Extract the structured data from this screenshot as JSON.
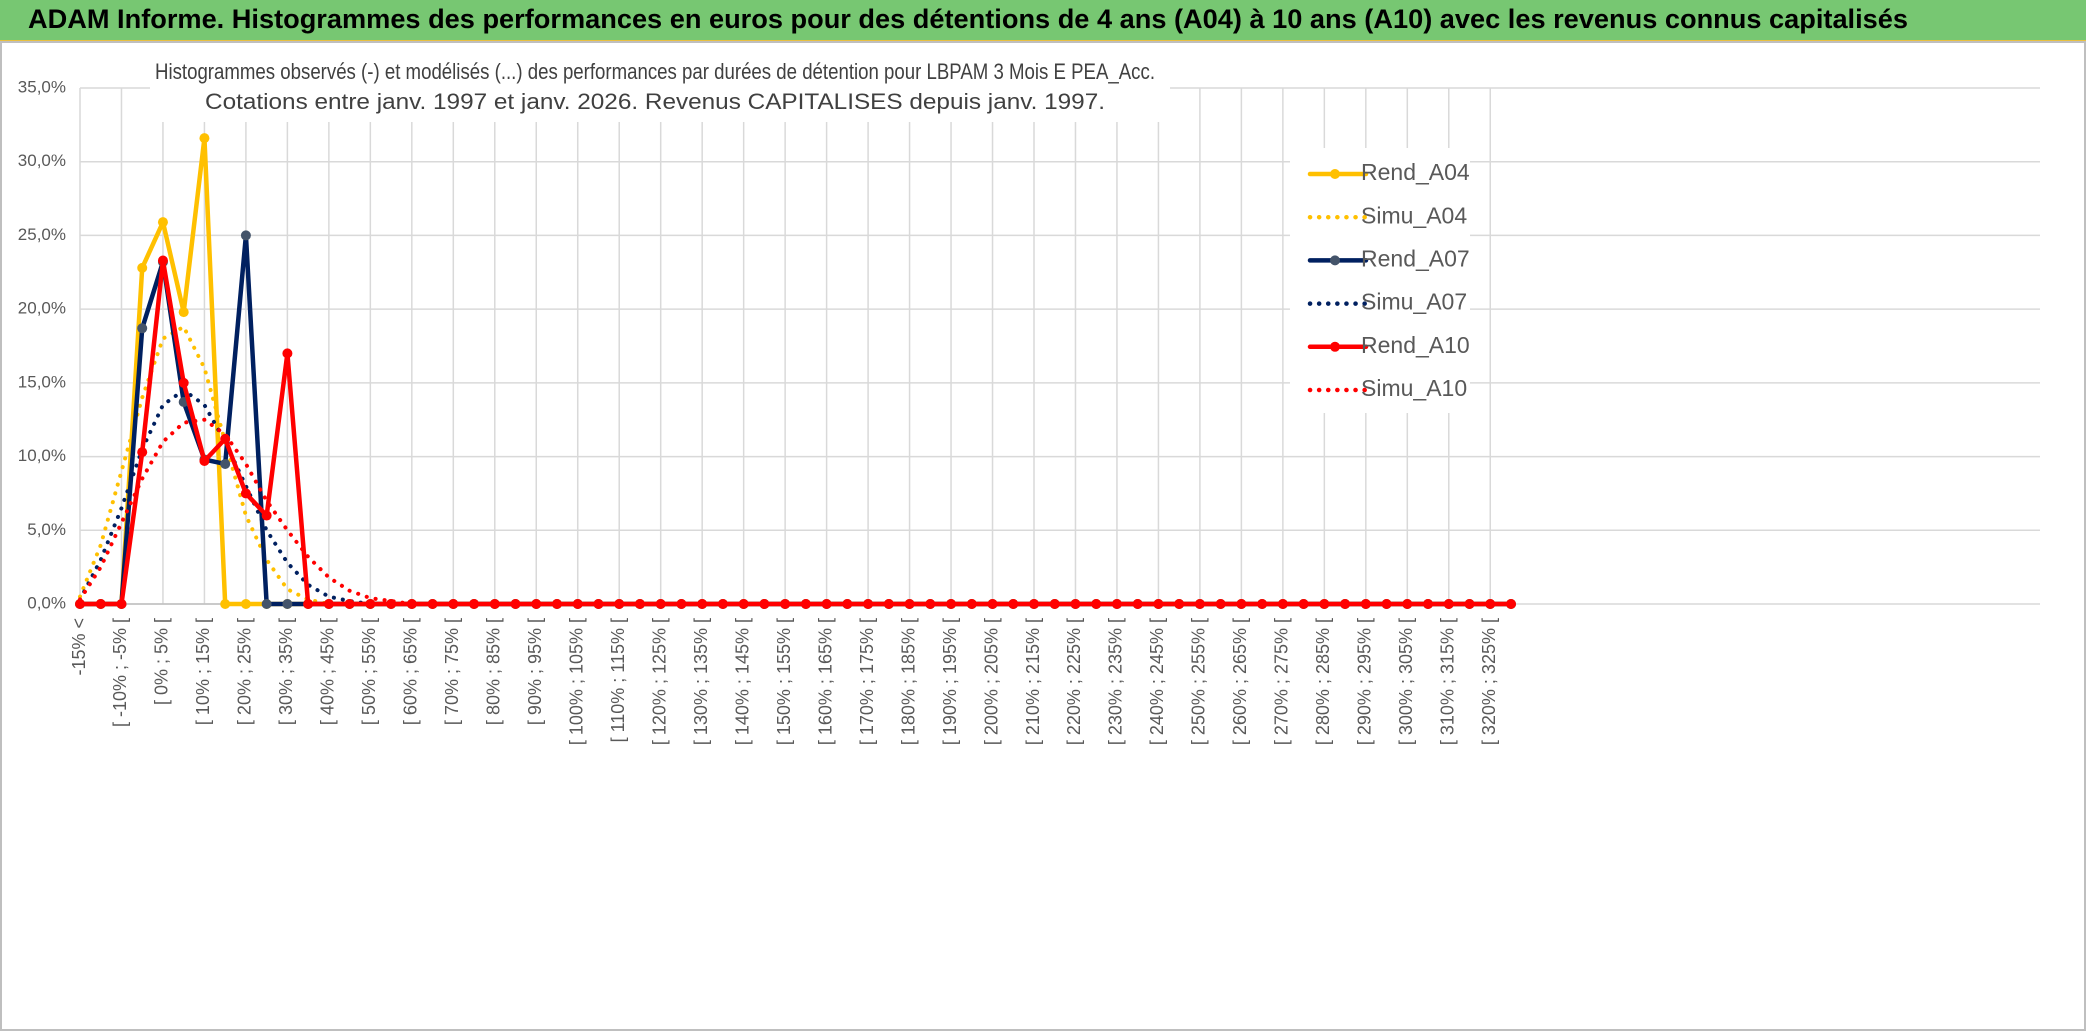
{
  "banner": {
    "title": "ADAM Informe. Histogrammes des performances en euros pour des détentions de 4 ans (A04) à 10 ans (A10) avec les revenus connus capitalisés"
  },
  "chart_data": {
    "type": "line",
    "title": "Histogrammes observés (-) et modélisés (...) des performances par durées de détention pour LBPAM 3 Mois E PEA_Acc.",
    "subtitle": "Cotations entre janv. 1997 et janv. 2026. Revenus CAPITALISES depuis janv. 1997.",
    "categories": [
      "-15% <",
      null,
      "[ -10% ; -5% [",
      null,
      "[ 0% ; 5% [",
      null,
      "[ 10% ; 15% [",
      null,
      "[ 20% ; 25% [",
      null,
      "[ 30% ; 35% [",
      null,
      "[ 40% ; 45% [",
      null,
      "[ 50% ; 55% [",
      null,
      "[ 60% ; 65% [",
      null,
      "[ 70% ; 75% [",
      null,
      "[ 80% ; 85% [",
      null,
      "[ 90% ; 95% [",
      null,
      "[ 100% ; 105% [",
      null,
      "[ 110% ; 115% [",
      null,
      "[ 120% ; 125% [",
      null,
      "[ 130% ; 135% [",
      null,
      "[ 140% ; 145% [",
      null,
      "[ 150% ; 155% [",
      null,
      "[ 160% ; 165% [",
      null,
      "[ 170% ; 175% [",
      null,
      "[ 180% ; 185% [",
      null,
      "[ 190% ; 195% [",
      null,
      "[ 200% ; 205% [",
      null,
      "[ 210% ; 215% [",
      null,
      "[ 220% ; 225% [",
      null,
      "[ 230% ; 235% [",
      null,
      "[ 240% ; 245% [",
      null,
      "[ 250% ; 255% [",
      null,
      "[ 260% ; 265% [",
      null,
      "[ 270% ; 275% [",
      null,
      "[ 280% ; 285% [",
      null,
      "[ 290% ; 295% [",
      null,
      "[ 300% ; 305% [",
      null,
      "[ 310% ; 315% [",
      null,
      "[ 320% ; 325% [",
      null
    ],
    "series": [
      {
        "name": "Rend_A04",
        "color": "#ffc000",
        "line_style": "solid",
        "values": [
          0,
          0,
          0,
          22.8,
          25.9,
          19.8,
          31.6,
          0,
          0,
          0,
          0,
          0,
          0,
          0,
          0,
          0,
          0,
          0,
          0,
          0,
          0,
          0,
          0,
          0,
          0,
          0,
          0,
          0,
          0,
          0,
          0,
          0,
          0,
          0,
          0,
          0,
          0,
          0,
          0,
          0,
          0,
          0,
          0,
          0,
          0,
          0,
          0,
          0,
          0,
          0,
          0,
          0,
          0,
          0,
          0,
          0,
          0,
          0,
          0,
          0,
          0,
          0,
          0,
          0,
          0,
          0,
          0,
          0,
          0,
          0
        ]
      },
      {
        "name": "Simu_A04",
        "color": "#ffc000",
        "line_style": "dotted",
        "values": [
          0.5,
          4,
          9,
          14,
          18,
          18.8,
          16,
          11,
          6,
          3,
          1,
          0.3,
          0,
          0,
          0,
          0,
          0,
          0,
          0,
          0,
          0,
          0,
          0,
          0,
          0,
          0,
          0,
          0,
          0,
          0,
          0,
          0,
          0,
          0,
          0,
          0,
          0,
          0,
          0,
          0,
          0,
          0,
          0,
          0,
          0,
          0,
          0,
          0,
          0,
          0,
          0,
          0,
          0,
          0,
          0,
          0,
          0,
          0,
          0,
          0,
          0,
          0,
          0,
          0,
          0,
          0,
          0,
          0,
          0,
          0
        ]
      },
      {
        "name": "Rend_A07",
        "color": "#002060",
        "marker_color": "#44546a",
        "line_style": "solid",
        "values": [
          0,
          0,
          0,
          18.7,
          23.2,
          13.7,
          9.8,
          9.5,
          25.0,
          0,
          0,
          0,
          0,
          0,
          0,
          0,
          0,
          0,
          0,
          0,
          0,
          0,
          0,
          0,
          0,
          0,
          0,
          0,
          0,
          0,
          0,
          0,
          0,
          0,
          0,
          0,
          0,
          0,
          0,
          0,
          0,
          0,
          0,
          0,
          0,
          0,
          0,
          0,
          0,
          0,
          0,
          0,
          0,
          0,
          0,
          0,
          0,
          0,
          0,
          0,
          0,
          0,
          0,
          0,
          0,
          0,
          0,
          0,
          0,
          0
        ]
      },
      {
        "name": "Simu_A07",
        "color": "#002060",
        "line_style": "dotted",
        "values": [
          0.3,
          3,
          6.5,
          10.5,
          13.5,
          14.5,
          13.5,
          11,
          8,
          5,
          2.8,
          1.3,
          0.5,
          0.2,
          0,
          0,
          0,
          0,
          0,
          0,
          0,
          0,
          0,
          0,
          0,
          0,
          0,
          0,
          0,
          0,
          0,
          0,
          0,
          0,
          0,
          0,
          0,
          0,
          0,
          0,
          0,
          0,
          0,
          0,
          0,
          0,
          0,
          0,
          0,
          0,
          0,
          0,
          0,
          0,
          0,
          0,
          0,
          0,
          0,
          0,
          0,
          0,
          0,
          0,
          0,
          0,
          0,
          0,
          0,
          0
        ]
      },
      {
        "name": "Rend_A10",
        "color": "#ff0000",
        "line_style": "solid",
        "values": [
          0,
          0,
          0,
          10.3,
          23.3,
          15.0,
          9.7,
          11.2,
          7.5,
          6.0,
          17.0,
          0,
          0,
          0,
          0,
          0,
          0,
          0,
          0,
          0,
          0,
          0,
          0,
          0,
          0,
          0,
          0,
          0,
          0,
          0,
          0,
          0,
          0,
          0,
          0,
          0,
          0,
          0,
          0,
          0,
          0,
          0,
          0,
          0,
          0,
          0,
          0,
          0,
          0,
          0,
          0,
          0,
          0,
          0,
          0,
          0,
          0,
          0,
          0,
          0,
          0,
          0,
          0,
          0,
          0,
          0,
          0,
          0,
          0,
          0
        ]
      },
      {
        "name": "Simu_A10",
        "color": "#ff0000",
        "line_style": "dotted",
        "values": [
          0.3,
          2.5,
          5.5,
          8.5,
          11,
          12.3,
          12.5,
          11.5,
          9.5,
          7,
          5,
          3.2,
          1.8,
          0.9,
          0.4,
          0.2,
          0,
          0,
          0,
          0,
          0,
          0,
          0,
          0,
          0,
          0,
          0,
          0,
          0,
          0,
          0,
          0,
          0,
          0,
          0,
          0,
          0,
          0,
          0,
          0,
          0,
          0,
          0,
          0,
          0,
          0,
          0,
          0,
          0,
          0,
          0,
          0,
          0,
          0,
          0,
          0,
          0,
          0,
          0,
          0,
          0,
          0,
          0,
          0,
          0,
          0,
          0,
          0,
          0,
          0
        ]
      }
    ],
    "ylim": [
      0,
      35
    ],
    "yticks": [
      {
        "value": 0,
        "label": "0,0%"
      },
      {
        "value": 5,
        "label": "5,0%"
      },
      {
        "value": 10,
        "label": "10,0%"
      },
      {
        "value": 15,
        "label": "15,0%"
      },
      {
        "value": 20,
        "label": "20,0%"
      },
      {
        "value": 25,
        "label": "25,0%"
      },
      {
        "value": 30,
        "label": "30,0%"
      },
      {
        "value": 35,
        "label": "35,0%"
      }
    ],
    "grid": true,
    "legend": "right"
  }
}
